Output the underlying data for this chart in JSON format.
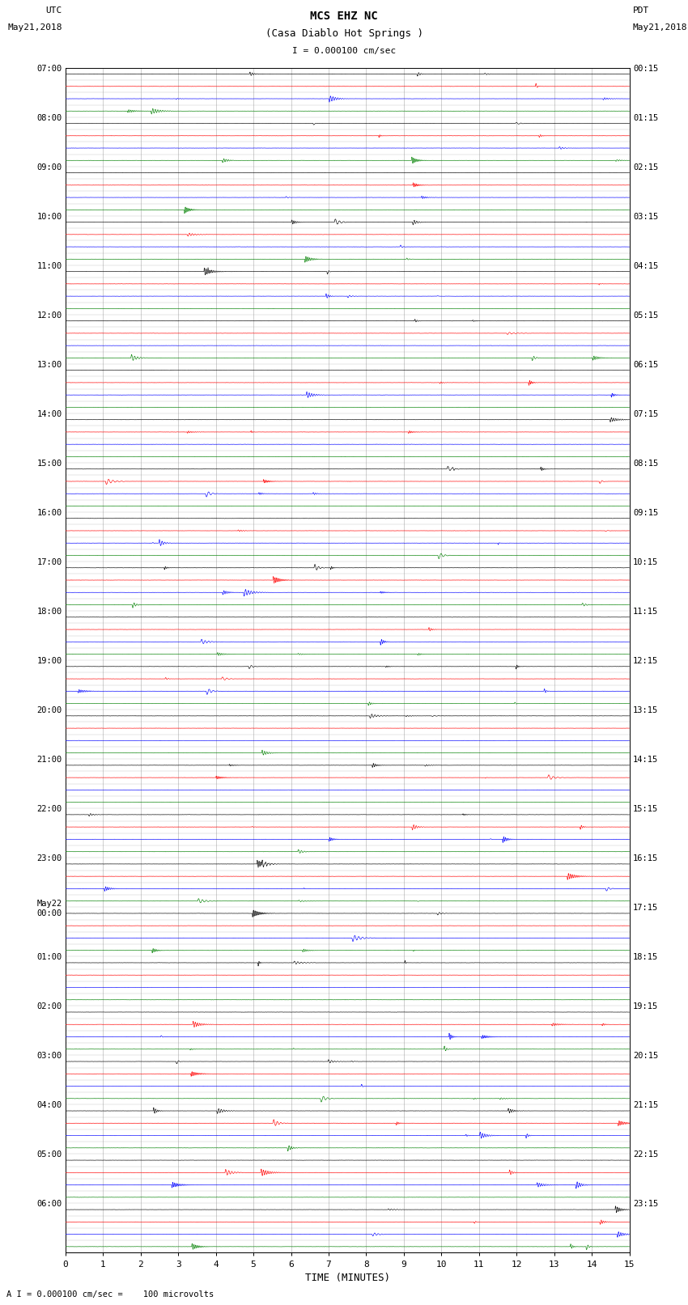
{
  "title_line1": "MCS EHZ NC",
  "title_line2": "(Casa Diablo Hot Springs )",
  "scale_label": "I = 0.000100 cm/sec",
  "left_header": "UTC",
  "left_date": "May21,2018",
  "right_header": "PDT",
  "right_date": "May21,2018",
  "bottom_label": "TIME (MINUTES)",
  "bottom_note": "A I = 0.000100 cm/sec =    100 microvolts",
  "xlabel_ticks": [
    0,
    1,
    2,
    3,
    4,
    5,
    6,
    7,
    8,
    9,
    10,
    11,
    12,
    13,
    14,
    15
  ],
  "trace_colors": [
    "black",
    "red",
    "blue",
    "green"
  ],
  "background_color": "white",
  "grid_color": "#888888",
  "utc_labels": [
    "07:00",
    "08:00",
    "09:00",
    "10:00",
    "11:00",
    "12:00",
    "13:00",
    "14:00",
    "15:00",
    "16:00",
    "17:00",
    "18:00",
    "19:00",
    "20:00",
    "21:00",
    "22:00",
    "23:00",
    "May22\n00:00",
    "01:00",
    "02:00",
    "03:00",
    "04:00",
    "05:00",
    "06:00"
  ],
  "pdt_labels": [
    "00:15",
    "01:15",
    "02:15",
    "03:15",
    "04:15",
    "05:15",
    "06:15",
    "07:15",
    "08:15",
    "09:15",
    "10:15",
    "11:15",
    "12:15",
    "13:15",
    "14:15",
    "15:15",
    "16:15",
    "17:15",
    "18:15",
    "19:15",
    "20:15",
    "21:15",
    "22:15",
    "23:15"
  ],
  "n_hours": 24,
  "n_channels": 4,
  "xlim": [
    0,
    15
  ],
  "noise_seed": 1234
}
